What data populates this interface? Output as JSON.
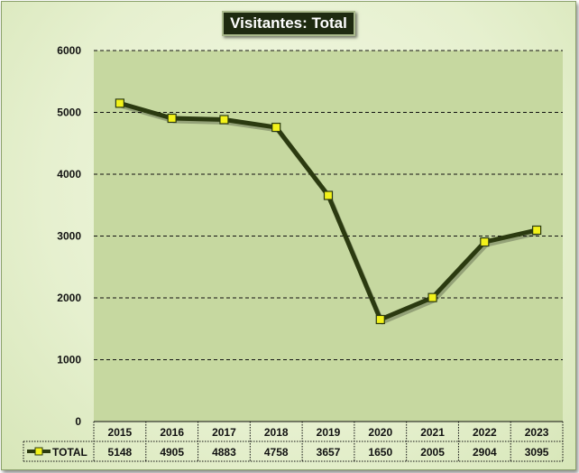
{
  "title": "Visitantes:  Total",
  "chart_data": {
    "type": "line",
    "title": "Visitantes:  Total",
    "categories": [
      "2015",
      "2016",
      "2017",
      "2018",
      "2019",
      "2020",
      "2021",
      "2022",
      "2023"
    ],
    "series": [
      {
        "name": "TOTAL",
        "values": [
          5148,
          4905,
          4883,
          4758,
          3657,
          1650,
          2005,
          2904,
          3095
        ]
      }
    ],
    "ylim": [
      0,
      6000
    ],
    "yticks": [
      0,
      1000,
      2000,
      3000,
      4000,
      5000,
      6000
    ],
    "grid": true,
    "legend": "data-table-left",
    "data_table": true,
    "colors": {
      "line": "#2b3a10",
      "marker_fill": "#f2f21a",
      "marker_stroke": "#2b3a10",
      "plot_bg": "#c6d8a0",
      "gridline": "#111111",
      "title_bg": "#1e2a10"
    }
  }
}
